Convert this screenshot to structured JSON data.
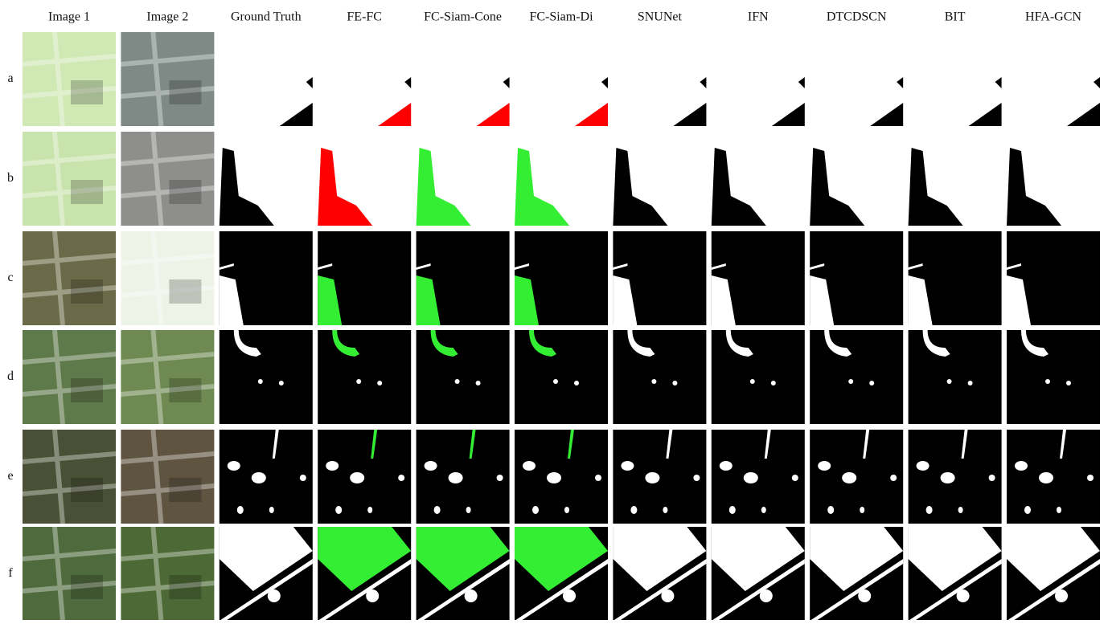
{
  "columns": [
    "Image 1",
    "Image 2",
    "Ground Truth",
    "FE-FC",
    "FC-Siam-Cone",
    "FC-Siam-Di",
    "SNUNet",
    "IFN",
    "DTCDSCN",
    "BIT",
    "HFA-GCN"
  ],
  "rows": [
    "a",
    "b",
    "c",
    "d",
    "e",
    "f"
  ]
}
